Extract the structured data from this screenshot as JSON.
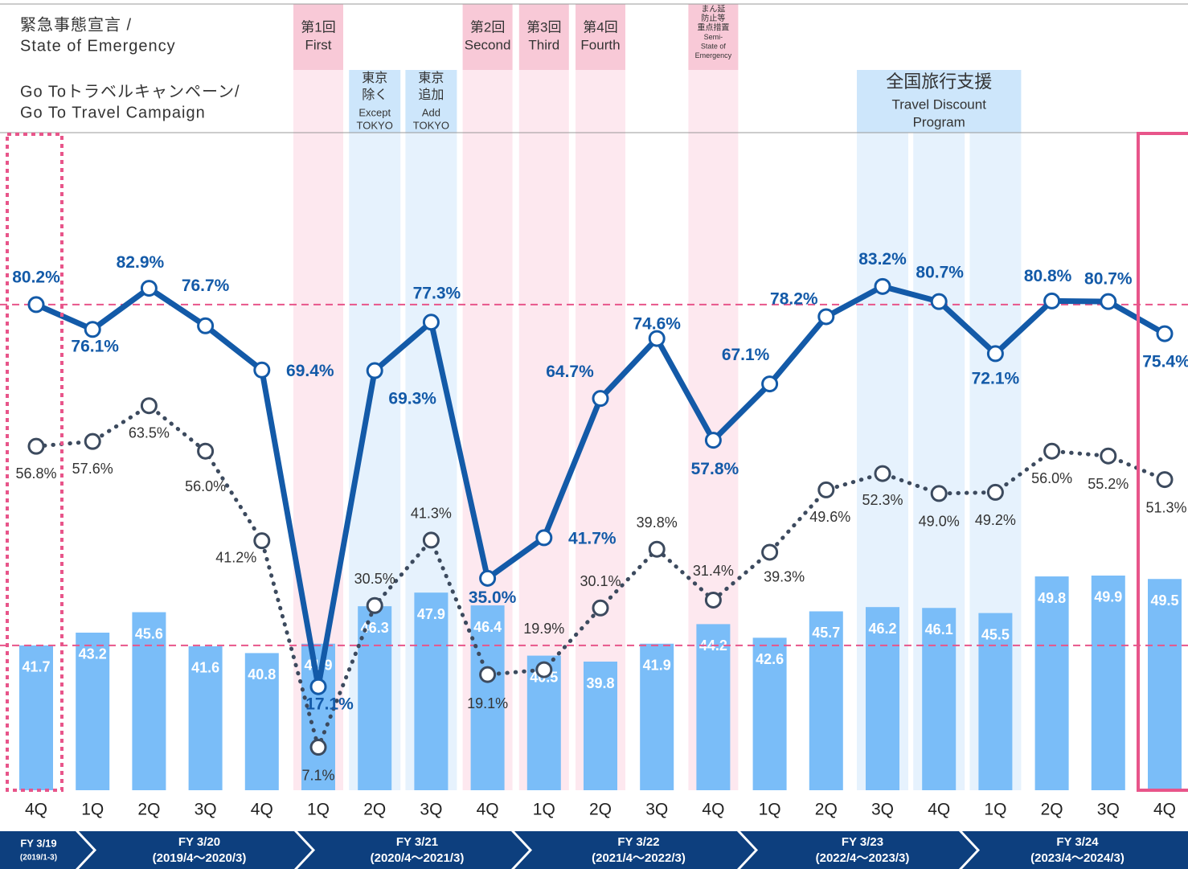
{
  "chart_data": {
    "type": "bar-line",
    "categories": [
      "4Q",
      "1Q",
      "2Q",
      "3Q",
      "4Q",
      "1Q",
      "2Q",
      "3Q",
      "4Q",
      "1Q",
      "2Q",
      "3Q",
      "4Q",
      "1Q",
      "2Q",
      "3Q",
      "4Q",
      "1Q",
      "2Q",
      "3Q",
      "4Q"
    ],
    "ylim": [
      0,
      108.6
    ],
    "y2lim": [
      24.7,
      101.9
    ],
    "series": [
      {
        "color": "#7abdf8",
        "axis": "y2",
        "values": [
          41.7,
          43.2,
          45.6,
          41.6,
          40.8,
          41.9,
          46.3,
          47.9,
          46.4,
          40.5,
          39.8,
          41.9,
          44.2,
          42.6,
          45.7,
          46.2,
          46.1,
          45.5,
          49.8,
          49.9,
          49.5
        ]
      },
      {
        "color": "#135aa8",
        "values": [
          80.2,
          76.1,
          82.9,
          76.7,
          69.4,
          17.1,
          69.3,
          77.3,
          35.0,
          41.7,
          64.7,
          74.6,
          57.8,
          67.1,
          78.2,
          83.2,
          80.7,
          72.1,
          80.8,
          80.7,
          75.4
        ],
        "value_labels": [
          "80.2%",
          "76.1%",
          "82.9%",
          "76.7%",
          "69.4%",
          "17.1%",
          "69.3%",
          "77.3%",
          "35.0%",
          "41.7%",
          "64.7%",
          "74.6%",
          "57.8%",
          "67.1%",
          "78.2%",
          "83.2%",
          "80.7%",
          "72.1%",
          "80.8%",
          "80.7%",
          "75.4%"
        ]
      },
      {
        "color": "#3c4a5e",
        "values": [
          56.8,
          57.6,
          63.5,
          56.0,
          41.2,
          7.1,
          30.5,
          41.3,
          19.1,
          19.9,
          30.1,
          39.8,
          31.4,
          39.3,
          49.6,
          52.3,
          49.0,
          49.2,
          56.0,
          55.2,
          51.3
        ],
        "value_labels": [
          "56.8%",
          "57.6%",
          "63.5%",
          "56.0%",
          "41.2%",
          "7.1%",
          "30.5%",
          "41.3%",
          "19.1%",
          "19.9%",
          "30.1%",
          "39.8%",
          "31.4%",
          "39.3%",
          "49.6%",
          "52.3%",
          "49.0%",
          "49.2%",
          "56.0%",
          "55.2%",
          "51.3%"
        ]
      }
    ],
    "header_rows": [
      [
        "緊急事態宣言 /",
        "State of Emergency"
      ],
      [
        "Go Toトラベルキャンペーン/",
        "Go To Travel Campaign"
      ]
    ],
    "emergency": [
      [
        "第1回",
        "First"
      ],
      [
        "第2回",
        "Second"
      ],
      [
        "第3回",
        "Third"
      ],
      [
        "第4回",
        "Fourth"
      ],
      [
        "まん延",
        "防止等",
        "重点措置",
        "Semi-",
        "State of",
        "Emergency"
      ]
    ],
    "goto": [
      [
        "東京",
        "除く",
        "Except",
        "TOKYO"
      ],
      [
        "東京",
        "追加",
        "Add",
        "TOKYO"
      ],
      [
        "全国旅行支援",
        "Travel Discount",
        "Program"
      ]
    ],
    "fiscal_years": [
      [
        "FY 3/19",
        "(2019/1-3)"
      ],
      [
        "FY 3/20",
        "(2019/4～2020/3)"
      ],
      [
        "FY 3/21",
        "(2020/4～2021/3)"
      ],
      [
        "FY 3/22",
        "(2021/4～2022/3)"
      ],
      [
        "FY 3/23",
        "(2022/4～2023/3)"
      ],
      [
        "FY 3/24",
        "(2023/4～2024/3)"
      ]
    ]
  }
}
